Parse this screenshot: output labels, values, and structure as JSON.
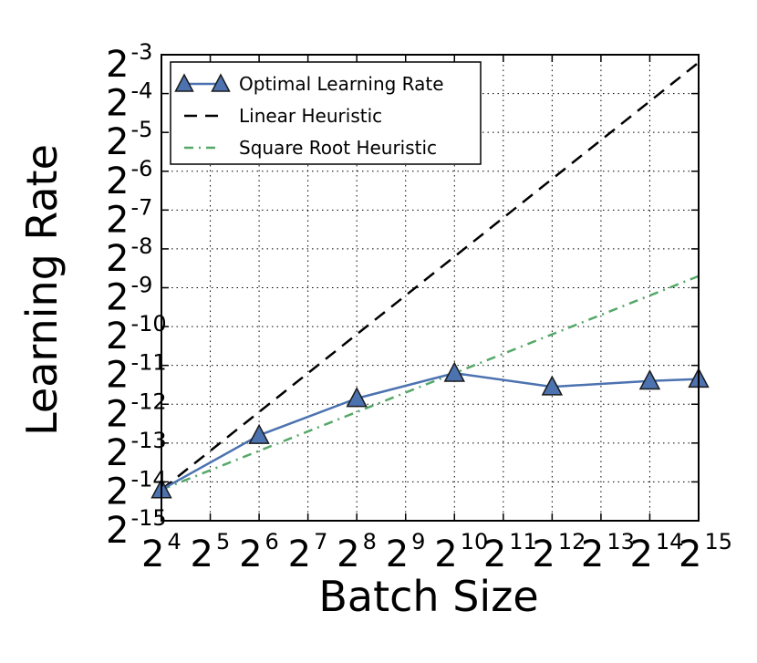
{
  "chart_data": {
    "type": "line",
    "title": "",
    "xlabel": "Batch Size",
    "ylabel": "Learning Rate",
    "x_scale": "log2",
    "y_scale": "log2",
    "xlim_exponent": [
      4,
      15
    ],
    "ylim_exponent": [
      -15,
      -3
    ],
    "x_tick_exponents": [
      4,
      5,
      6,
      7,
      8,
      9,
      10,
      11,
      12,
      13,
      14,
      15
    ],
    "y_tick_exponents": [
      -3,
      -4,
      -5,
      -6,
      -7,
      -8,
      -9,
      -10,
      -11,
      -12,
      -13,
      -14,
      -15
    ],
    "tick_base": "2",
    "grid": true,
    "legend_position": "top-left",
    "series": [
      {
        "name": "Optimal Learning Rate",
        "style": "solid-with-triangle-markers",
        "color": "#4c72b0",
        "marker_fill": "#4c72b0",
        "x_exponent": [
          4,
          6,
          8,
          10,
          12,
          14,
          15
        ],
        "y_exponent": [
          -14.2,
          -12.8,
          -11.85,
          -11.2,
          -11.55,
          -11.4,
          -11.35
        ]
      },
      {
        "name": "Linear Heuristic",
        "style": "dashed",
        "color": "#000000",
        "x_exponent": [
          4,
          15
        ],
        "y_exponent": [
          -14.2,
          -3.2
        ]
      },
      {
        "name": "Square Root Heuristic",
        "style": "dash-dot",
        "color": "#55a868",
        "x_exponent": [
          4,
          15
        ],
        "y_exponent": [
          -14.2,
          -8.7
        ]
      }
    ]
  }
}
